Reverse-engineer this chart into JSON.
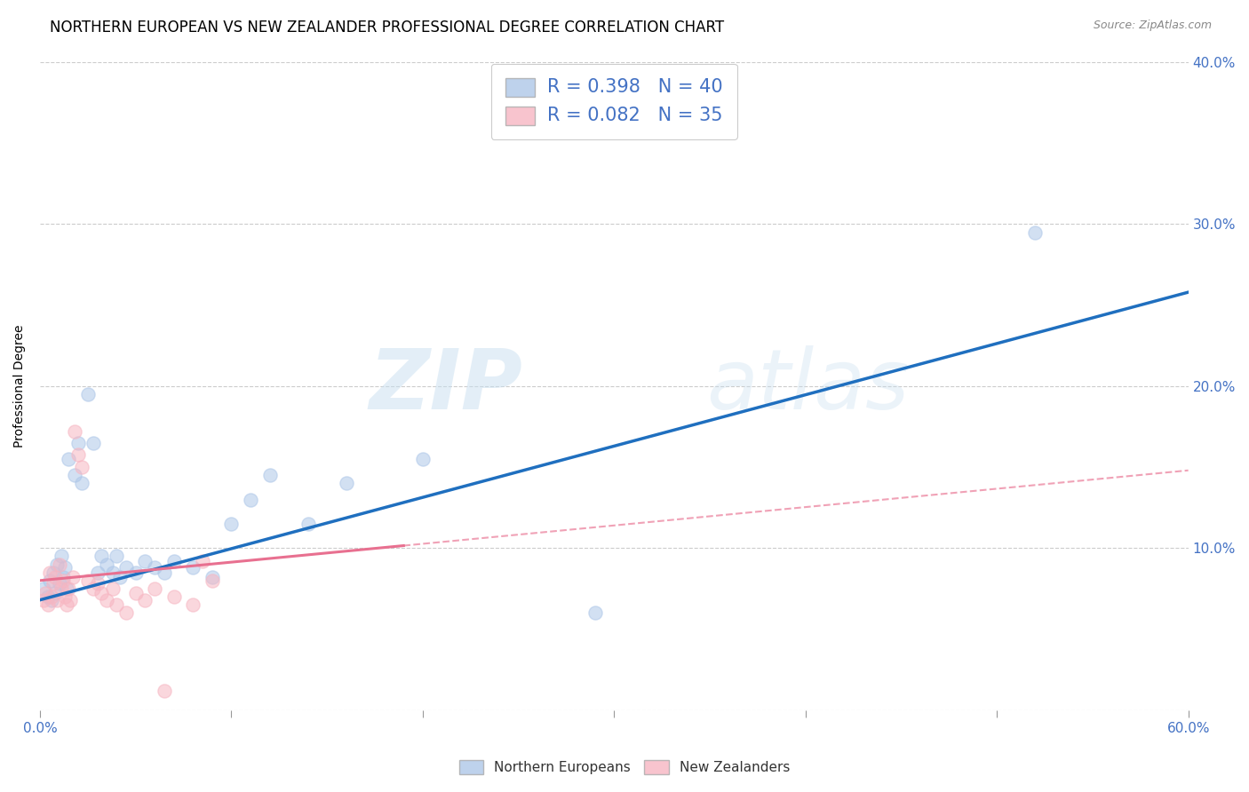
{
  "title": "NORTHERN EUROPEAN VS NEW ZEALANDER PROFESSIONAL DEGREE CORRELATION CHART",
  "source": "Source: ZipAtlas.com",
  "ylabel": "Professional Degree",
  "xlim": [
    0.0,
    0.6
  ],
  "ylim": [
    0.0,
    0.4
  ],
  "xticks": [
    0.0,
    0.1,
    0.2,
    0.3,
    0.4,
    0.5,
    0.6
  ],
  "yticks": [
    0.0,
    0.1,
    0.2,
    0.3,
    0.4
  ],
  "xtick_labels": [
    "0.0%",
    "",
    "",
    "",
    "",
    "",
    "60.0%"
  ],
  "ytick_labels_right": [
    "",
    "10.0%",
    "20.0%",
    "30.0%",
    "40.0%"
  ],
  "legend_labels": [
    "Northern Europeans",
    "New Zealanders"
  ],
  "r_blue": 0.398,
  "n_blue": 40,
  "r_pink": 0.082,
  "n_pink": 35,
  "blue_color": "#aec7e8",
  "pink_color": "#f7b6c2",
  "blue_line_color": "#1f6fbf",
  "pink_line_color": "#e87090",
  "blue_scatter": [
    [
      0.002,
      0.075
    ],
    [
      0.004,
      0.07
    ],
    [
      0.005,
      0.08
    ],
    [
      0.006,
      0.068
    ],
    [
      0.007,
      0.085
    ],
    [
      0.008,
      0.072
    ],
    [
      0.009,
      0.09
    ],
    [
      0.01,
      0.078
    ],
    [
      0.011,
      0.095
    ],
    [
      0.012,
      0.082
    ],
    [
      0.013,
      0.088
    ],
    [
      0.014,
      0.075
    ],
    [
      0.015,
      0.155
    ],
    [
      0.018,
      0.145
    ],
    [
      0.02,
      0.165
    ],
    [
      0.022,
      0.14
    ],
    [
      0.025,
      0.195
    ],
    [
      0.028,
      0.165
    ],
    [
      0.03,
      0.085
    ],
    [
      0.032,
      0.095
    ],
    [
      0.035,
      0.09
    ],
    [
      0.038,
      0.085
    ],
    [
      0.04,
      0.095
    ],
    [
      0.042,
      0.082
    ],
    [
      0.045,
      0.088
    ],
    [
      0.05,
      0.085
    ],
    [
      0.055,
      0.092
    ],
    [
      0.06,
      0.088
    ],
    [
      0.065,
      0.085
    ],
    [
      0.07,
      0.092
    ],
    [
      0.08,
      0.088
    ],
    [
      0.09,
      0.082
    ],
    [
      0.1,
      0.115
    ],
    [
      0.11,
      0.13
    ],
    [
      0.12,
      0.145
    ],
    [
      0.14,
      0.115
    ],
    [
      0.16,
      0.14
    ],
    [
      0.2,
      0.155
    ],
    [
      0.29,
      0.06
    ],
    [
      0.52,
      0.295
    ]
  ],
  "pink_scatter": [
    [
      0.002,
      0.068
    ],
    [
      0.003,
      0.072
    ],
    [
      0.004,
      0.065
    ],
    [
      0.005,
      0.085
    ],
    [
      0.006,
      0.07
    ],
    [
      0.007,
      0.078
    ],
    [
      0.008,
      0.082
    ],
    [
      0.009,
      0.068
    ],
    [
      0.01,
      0.09
    ],
    [
      0.011,
      0.075
    ],
    [
      0.012,
      0.08
    ],
    [
      0.013,
      0.07
    ],
    [
      0.014,
      0.065
    ],
    [
      0.015,
      0.075
    ],
    [
      0.016,
      0.068
    ],
    [
      0.017,
      0.082
    ],
    [
      0.018,
      0.172
    ],
    [
      0.02,
      0.158
    ],
    [
      0.022,
      0.15
    ],
    [
      0.025,
      0.08
    ],
    [
      0.028,
      0.075
    ],
    [
      0.03,
      0.078
    ],
    [
      0.032,
      0.072
    ],
    [
      0.035,
      0.068
    ],
    [
      0.038,
      0.075
    ],
    [
      0.04,
      0.065
    ],
    [
      0.045,
      0.06
    ],
    [
      0.05,
      0.072
    ],
    [
      0.055,
      0.068
    ],
    [
      0.06,
      0.075
    ],
    [
      0.065,
      0.012
    ],
    [
      0.07,
      0.07
    ],
    [
      0.08,
      0.065
    ],
    [
      0.085,
      0.092
    ],
    [
      0.09,
      0.08
    ]
  ],
  "background_color": "#ffffff",
  "grid_color": "#cccccc",
  "watermark_zip": "ZIP",
  "watermark_atlas": "atlas",
  "title_fontsize": 12,
  "axis_label_fontsize": 10,
  "tick_fontsize": 11,
  "legend_fontsize": 13
}
